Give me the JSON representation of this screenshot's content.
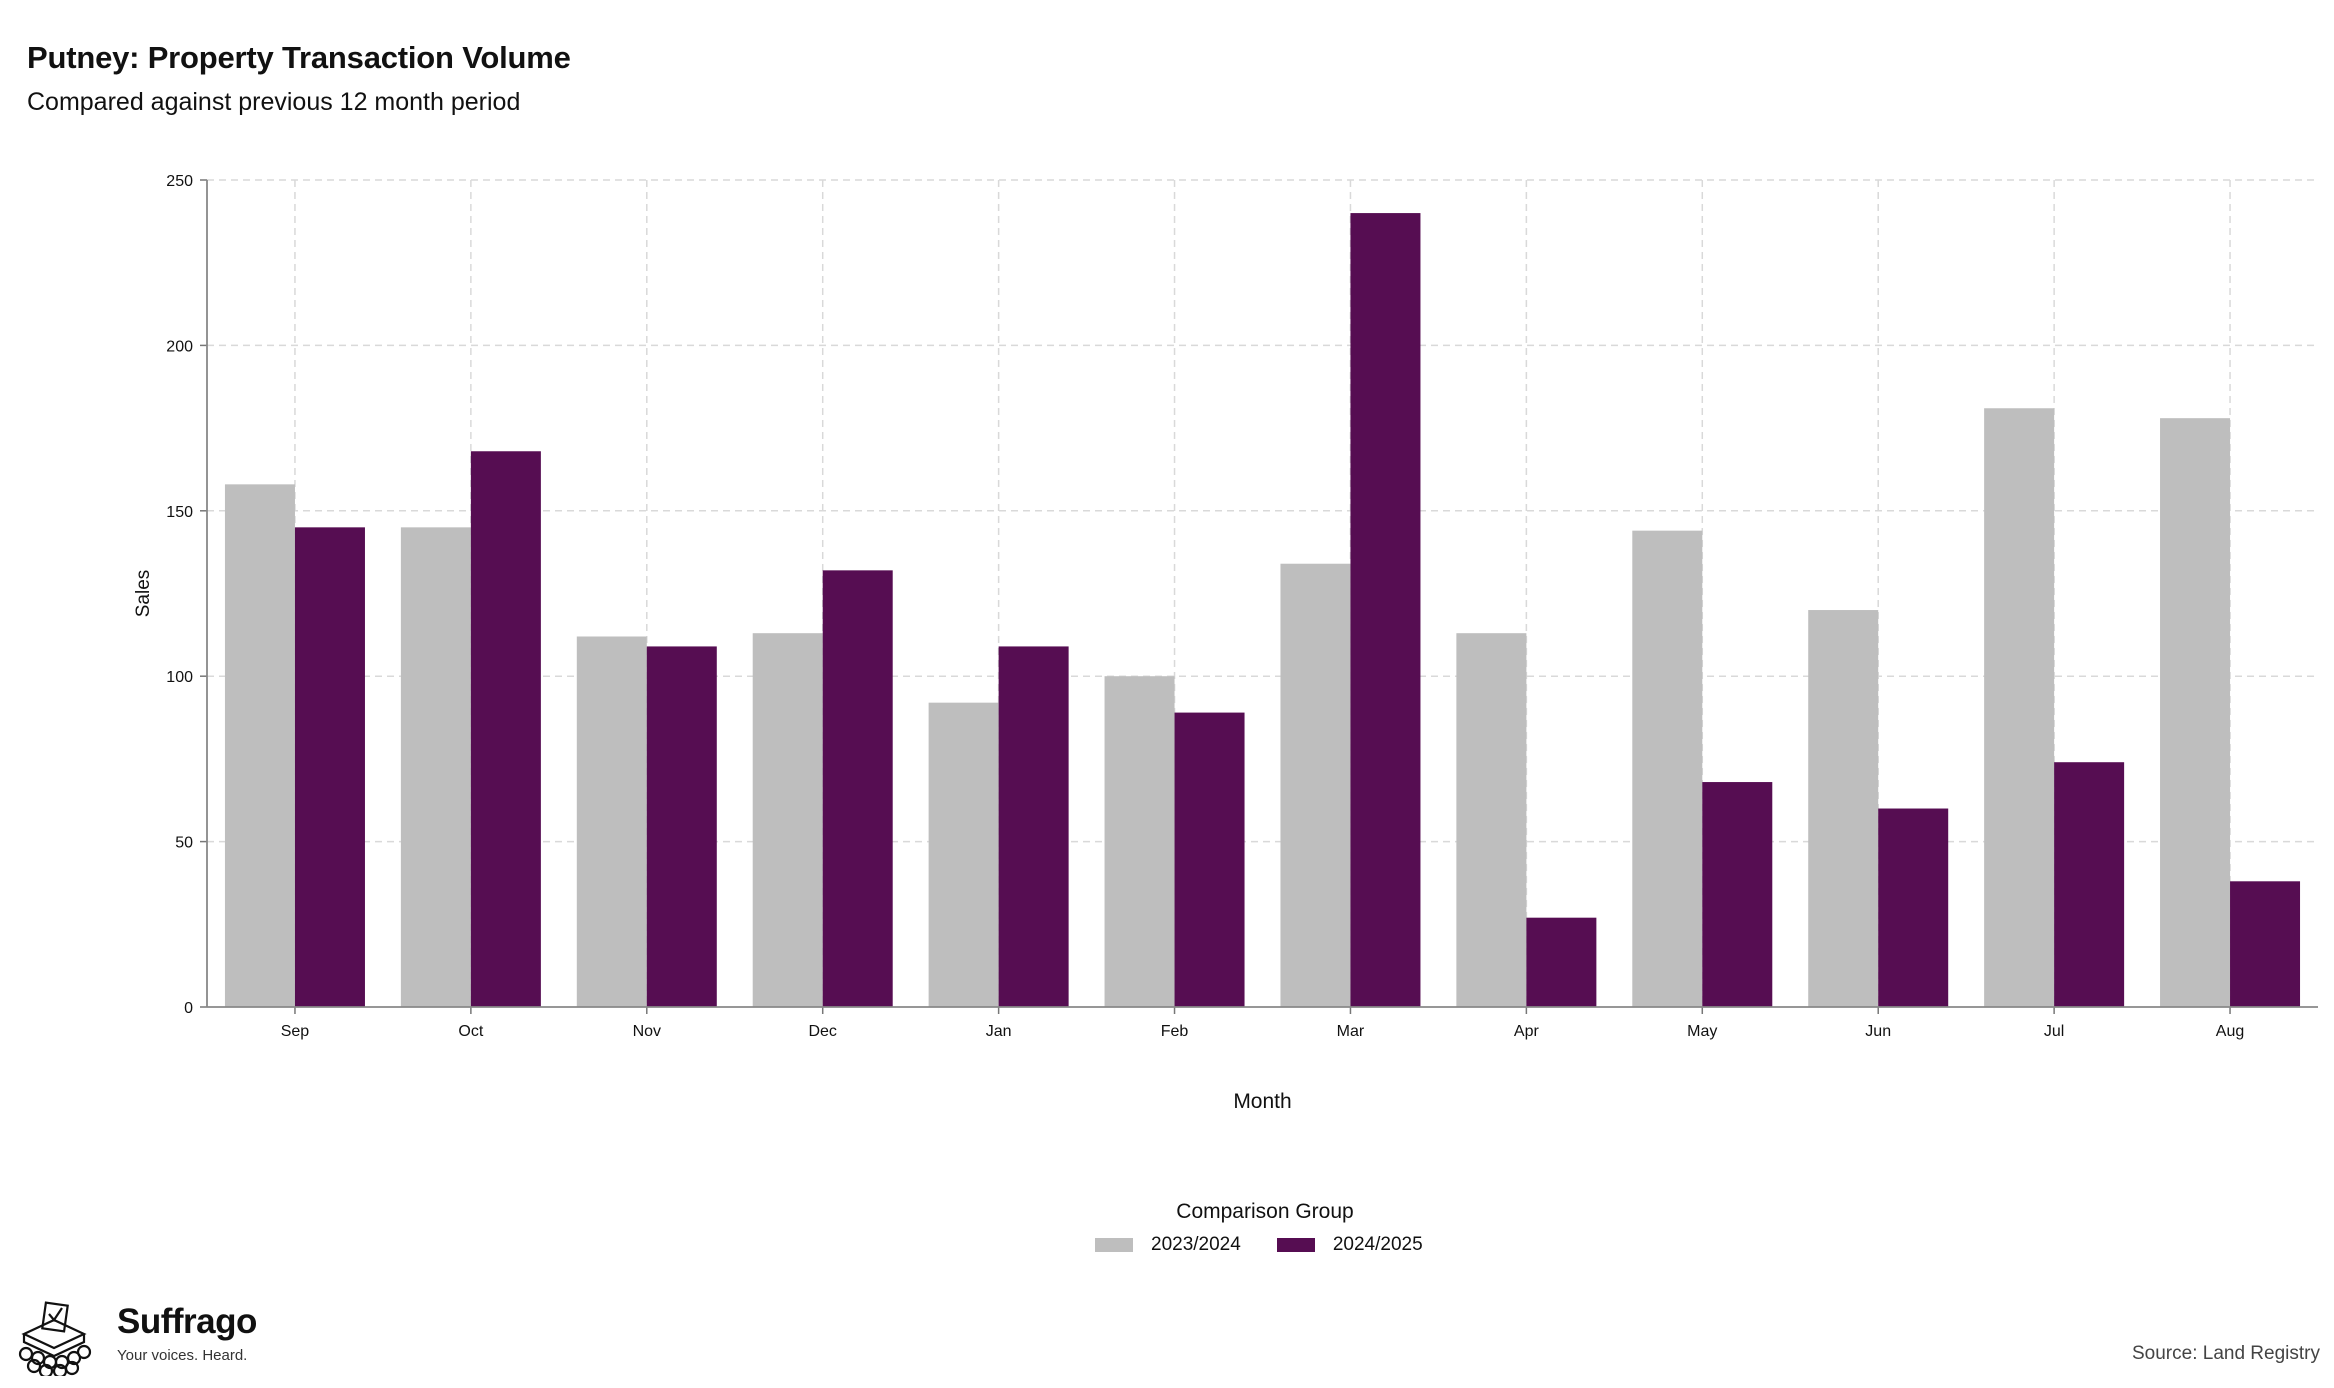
{
  "title": "Putney: Property Transaction Volume",
  "subtitle": "Compared against previous 12 month period",
  "legend": {
    "title": "Comparison Group",
    "items": [
      {
        "label": "2023/2024",
        "color": "#bebebe"
      },
      {
        "label": "2024/2025",
        "color": "#560d52"
      }
    ]
  },
  "brand": {
    "name": "Suffrago",
    "tagline": "Your voices. Heard.",
    "icon": "ballot-box-icon"
  },
  "source": "Source: Land Registry",
  "chart_data": {
    "type": "bar",
    "xlabel": "Month",
    "ylabel": "Sales",
    "ylim": [
      0,
      250
    ],
    "yticks": [
      0,
      50,
      100,
      150,
      200,
      250
    ],
    "grid": true,
    "legend_position": "bottom",
    "categories": [
      "Sep",
      "Oct",
      "Nov",
      "Dec",
      "Jan",
      "Feb",
      "Mar",
      "Apr",
      "May",
      "Jun",
      "Jul",
      "Aug"
    ],
    "series": [
      {
        "name": "2023/2024",
        "color": "#bebebe",
        "values": [
          158,
          145,
          112,
          113,
          92,
          100,
          134,
          113,
          144,
          120,
          181,
          178
        ]
      },
      {
        "name": "2024/2025",
        "color": "#560d52",
        "values": [
          145,
          168,
          109,
          132,
          109,
          89,
          240,
          27,
          68,
          60,
          74,
          38
        ]
      }
    ]
  }
}
